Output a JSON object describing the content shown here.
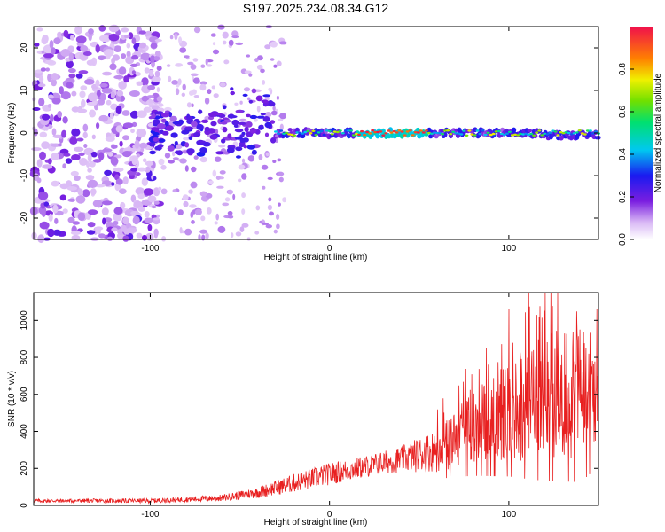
{
  "title": "S197.2025.234.08.34.G12",
  "chart_data": [
    {
      "type": "heatmap",
      "xlabel": "Height of straight line (km)",
      "ylabel": "Frequency (Hz)",
      "xlim": [
        -165,
        150
      ],
      "ylim": [
        -25,
        25
      ],
      "x_ticks": [
        -100,
        0,
        100
      ],
      "y_ticks": [
        -20,
        -10,
        0,
        10,
        20
      ],
      "colorbar": {
        "label": "Normalized spectral amplitude",
        "range": [
          0,
          1
        ],
        "ticks": [
          0.0,
          0.2,
          0.4,
          0.6,
          0.8
        ]
      },
      "features": [
        {
          "x_range": [
            -165,
            -100
          ],
          "description_level": "scattered noise, amplitude 0.1-0.3"
        },
        {
          "x_range": [
            -100,
            -30
          ],
          "freq_center": 0,
          "freq_width": 6,
          "amplitude": 0.25
        },
        {
          "x_range": [
            -30,
            150
          ],
          "freq_center": 0,
          "freq_width": 2,
          "amplitude": 0.6,
          "peak": 1.0,
          "peak_x": [
            20,
            50
          ]
        }
      ]
    },
    {
      "type": "line",
      "xlabel": "Height of straight line (km)",
      "ylabel": "SNR (10 * v/v)",
      "xlim": [
        -165,
        150
      ],
      "ylim": [
        0,
        1150
      ],
      "x_ticks": [
        -100,
        0,
        100
      ],
      "y_ticks": [
        0,
        200,
        400,
        600,
        800,
        1000
      ],
      "color": "#e82020",
      "envelope": {
        "x": [
          -165,
          -100,
          -60,
          -40,
          -20,
          0,
          20,
          40,
          60,
          80,
          100,
          120,
          140,
          150
        ],
        "mean": [
          25,
          25,
          40,
          70,
          120,
          170,
          210,
          250,
          300,
          420,
          520,
          600,
          620,
          600
        ],
        "spread": [
          10,
          12,
          18,
          30,
          50,
          60,
          60,
          70,
          120,
          200,
          280,
          360,
          380,
          300
        ]
      }
    }
  ]
}
